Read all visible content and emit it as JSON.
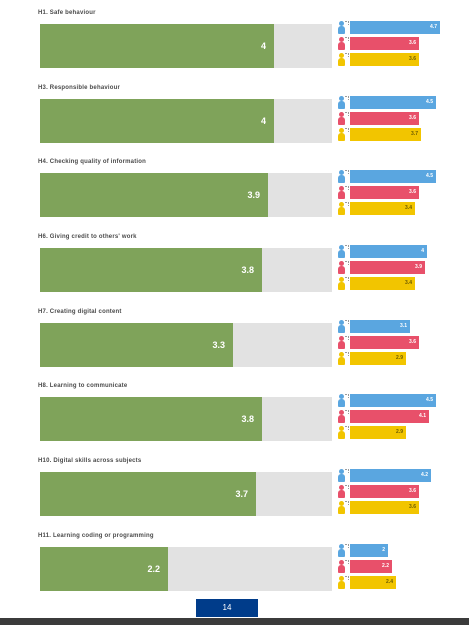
{
  "scale_max": 5,
  "colors": {
    "overall": "#7fa35a",
    "track": "#e2e2e2",
    "group_blue": "#5aa6e0",
    "group_red": "#e8506a",
    "group_yellow": "#f2c500",
    "page_badge": "#003c8a",
    "footer": "#3b3b3b"
  },
  "icons": [
    "person-blue-icon",
    "person-red-icon",
    "person-yellow-icon"
  ],
  "items": [
    {
      "title": "H1. Safe behaviour",
      "value": 4,
      "value_label": "4",
      "group_values": [
        4.7,
        3.6,
        3.6
      ],
      "group_labels": [
        "4.7",
        "3.6",
        "3.6"
      ]
    },
    {
      "title": "H3. Responsible behaviour",
      "value": 4,
      "value_label": "4",
      "group_values": [
        4.5,
        3.6,
        3.7
      ],
      "group_labels": [
        "4.5",
        "3.6",
        "3.7"
      ]
    },
    {
      "title": "H4. Checking quality of information",
      "value": 3.9,
      "value_label": "3.9",
      "group_values": [
        4.5,
        3.6,
        3.4
      ],
      "group_labels": [
        "4.5",
        "3.6",
        "3.4"
      ]
    },
    {
      "title": "H6. Giving credit to others' work",
      "value": 3.8,
      "value_label": "3.8",
      "group_values": [
        4,
        3.9,
        3.4
      ],
      "group_labels": [
        "4",
        "3.9",
        "3.4"
      ]
    },
    {
      "title": "H7. Creating digital content",
      "value": 3.3,
      "value_label": "3.3",
      "group_values": [
        3.1,
        3.6,
        2.9
      ],
      "group_labels": [
        "3.1",
        "3.6",
        "2.9"
      ]
    },
    {
      "title": "H8. Learning to communicate",
      "value": 3.8,
      "value_label": "3.8",
      "group_values": [
        4.5,
        4.1,
        2.9
      ],
      "group_labels": [
        "4.5",
        "4.1",
        "2.9"
      ]
    },
    {
      "title": "H10. Digital skills across subjects",
      "value": 3.7,
      "value_label": "3.7",
      "group_values": [
        4.2,
        3.6,
        3.6
      ],
      "group_labels": [
        "4.2",
        "3.6",
        "3.6"
      ]
    },
    {
      "title": "H11. Learning coding or programming",
      "value": 2.2,
      "value_label": "2.2",
      "group_values": [
        2,
        2.2,
        2.4
      ],
      "group_labels": [
        "2",
        "2.2",
        "2.4"
      ]
    }
  ],
  "page_number": "14"
}
